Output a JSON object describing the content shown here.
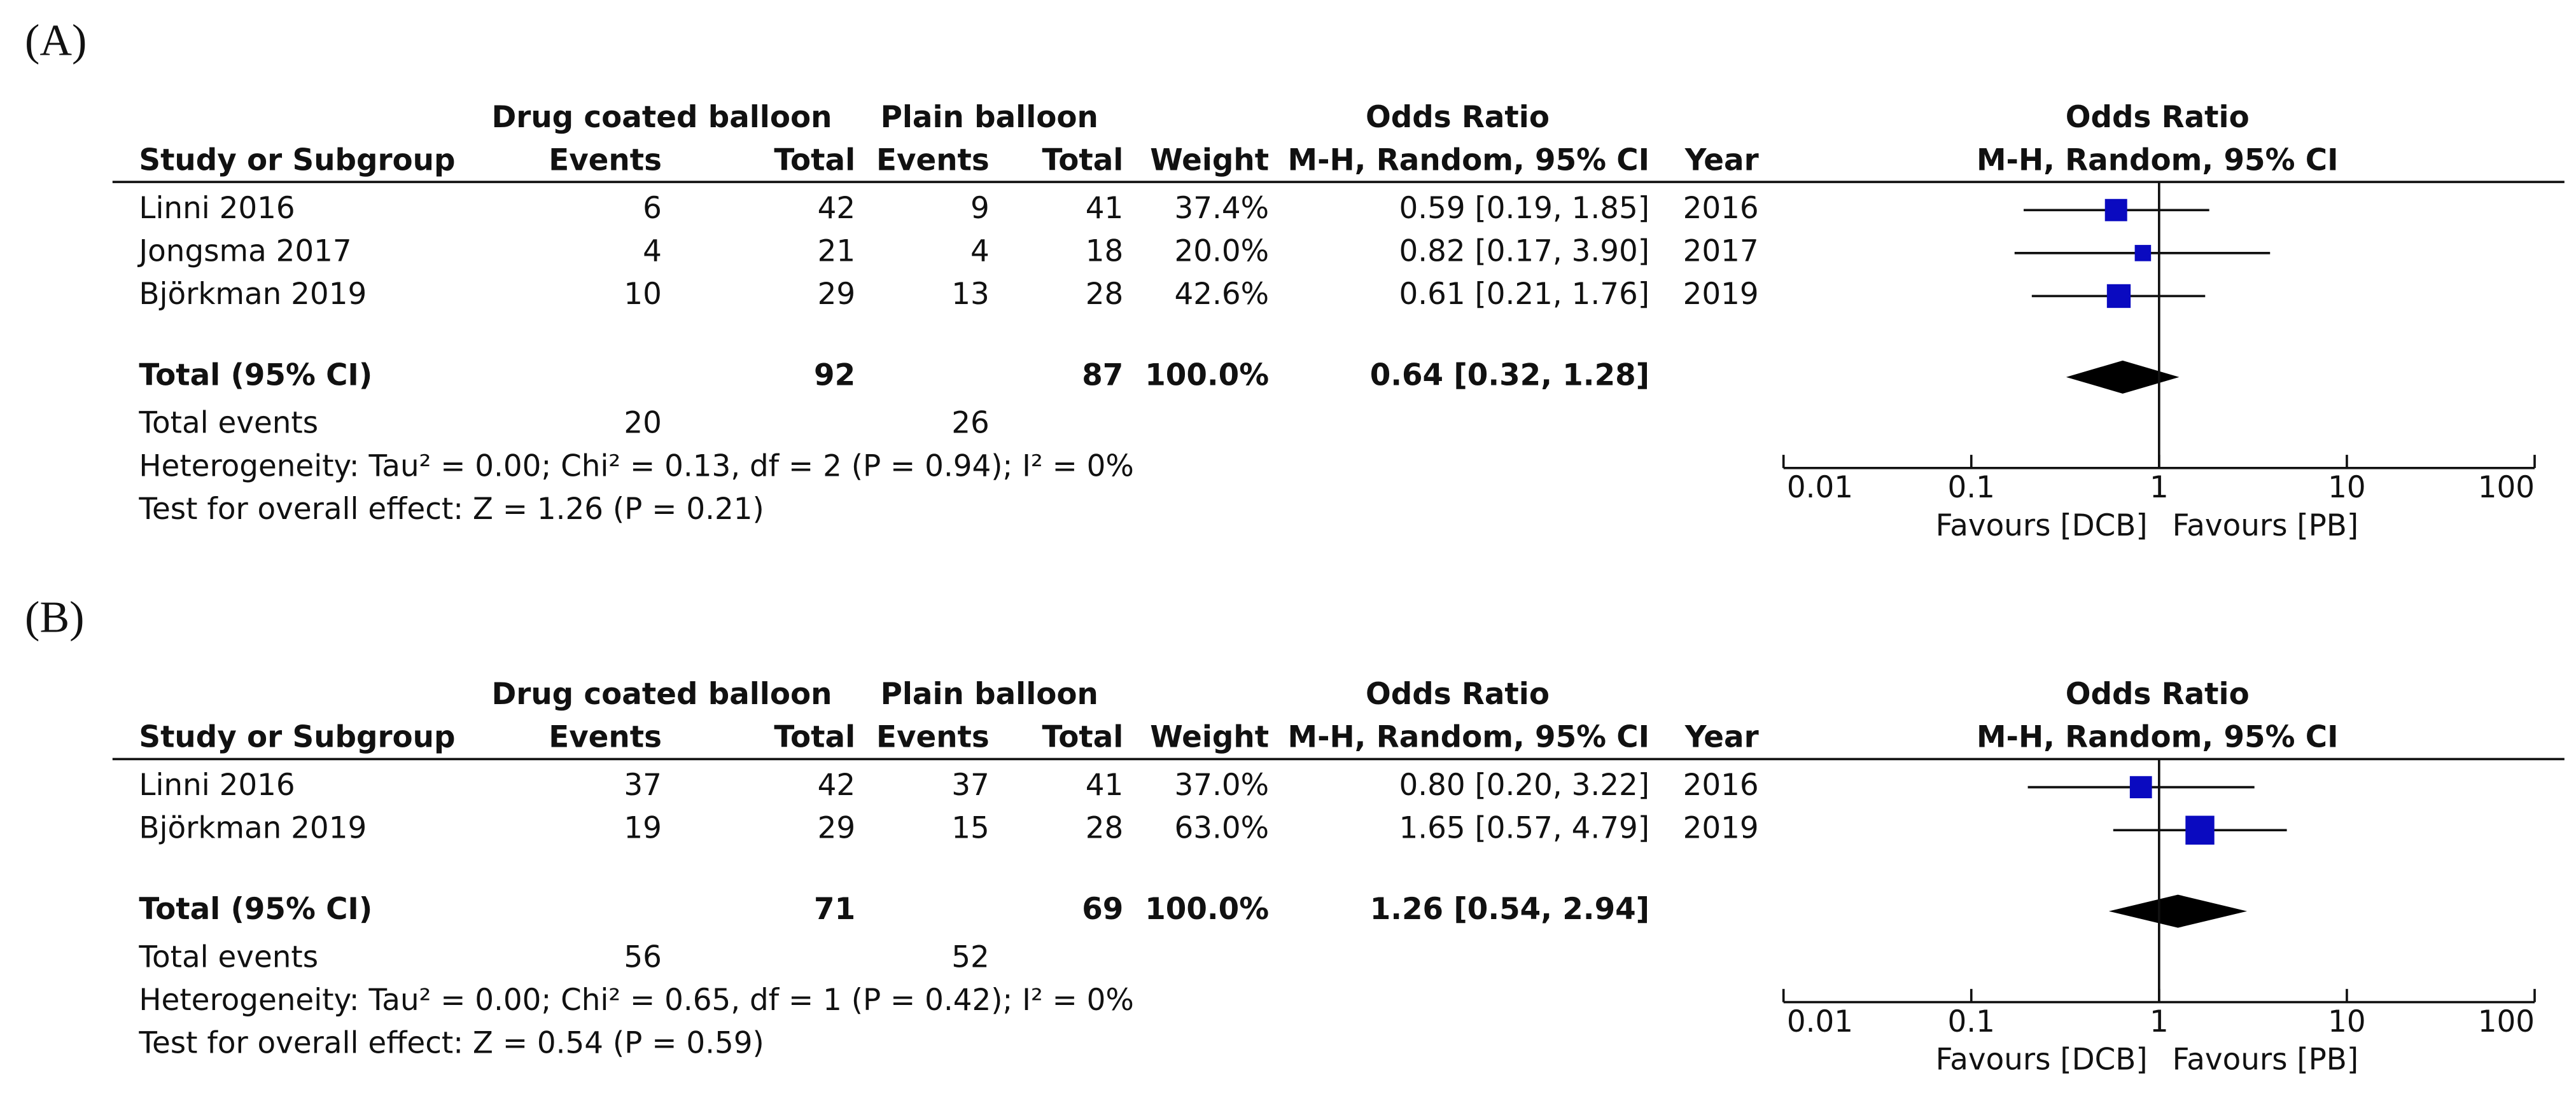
{
  "chart_data": [
    {
      "type": "forest",
      "panel": "(A)",
      "group_headers": [
        "Drug coated balloon",
        "Plain balloon",
        "Odds Ratio",
        "Odds Ratio"
      ],
      "column_headers": [
        "Study or Subgroup",
        "Events",
        "Total",
        "Events",
        "Total",
        "Weight",
        "M-H, Random, 95% CI",
        "Year",
        "M-H, Random, 95% CI"
      ],
      "studies": [
        {
          "name": "Linni 2016",
          "e1": 6,
          "n1": 42,
          "e2": 9,
          "n2": 41,
          "weight": 37.4,
          "weight_label": "37.4%",
          "or": 0.59,
          "lower": 0.19,
          "upper": 1.85,
          "ci_label": "0.59 [0.19, 1.85]",
          "year": 2016
        },
        {
          "name": "Jongsma 2017",
          "e1": 4,
          "n1": 21,
          "e2": 4,
          "n2": 18,
          "weight": 20.0,
          "weight_label": "20.0%",
          "or": 0.82,
          "lower": 0.17,
          "upper": 3.9,
          "ci_label": "0.82 [0.17, 3.90]",
          "year": 2017
        },
        {
          "name": "Björkman 2019",
          "e1": 10,
          "n1": 29,
          "e2": 13,
          "n2": 28,
          "weight": 42.6,
          "weight_label": "42.6%",
          "or": 0.61,
          "lower": 0.21,
          "upper": 1.76,
          "ci_label": "0.61 [0.21, 1.76]",
          "year": 2019
        }
      ],
      "total": {
        "name": "Total (95% CI)",
        "n1": 92,
        "n2": 87,
        "weight": 100.0,
        "weight_label": "100.0%",
        "or": 0.64,
        "lower": 0.32,
        "upper": 1.28,
        "ci_label": "0.64 [0.32, 1.28]"
      },
      "total_events": {
        "label": "Total events",
        "e1": 20,
        "e2": 26
      },
      "heterogeneity": "Heterogeneity: Tau² = 0.00; Chi² = 0.13, df = 2 (P = 0.94); I² = 0%",
      "overall_effect": "Test for overall effect: Z = 1.26 (P = 0.21)",
      "xlim": [
        0.01,
        100
      ],
      "xticks": [
        0.01,
        0.1,
        1,
        10,
        100
      ],
      "log": true,
      "favours_left": "Favours [DCB]",
      "favours_right": "Favours [PB]",
      "color": "#0a0ac0",
      "diamond_color": "#000000"
    },
    {
      "type": "forest",
      "panel": "(B)",
      "group_headers": [
        "Drug coated balloon",
        "Plain balloon",
        "Odds Ratio",
        "Odds Ratio"
      ],
      "column_headers": [
        "Study or Subgroup",
        "Events",
        "Total",
        "Events",
        "Total",
        "Weight",
        "M-H, Random, 95% CI",
        "Year",
        "M-H, Random, 95% CI"
      ],
      "studies": [
        {
          "name": "Linni 2016",
          "e1": 37,
          "n1": 42,
          "e2": 37,
          "n2": 41,
          "weight": 37.0,
          "weight_label": "37.0%",
          "or": 0.8,
          "lower": 0.2,
          "upper": 3.22,
          "ci_label": "0.80 [0.20, 3.22]",
          "year": 2016
        },
        {
          "name": "Björkman 2019",
          "e1": 19,
          "n1": 29,
          "e2": 15,
          "n2": 28,
          "weight": 63.0,
          "weight_label": "63.0%",
          "or": 1.65,
          "lower": 0.57,
          "upper": 4.79,
          "ci_label": "1.65 [0.57, 4.79]",
          "year": 2019
        }
      ],
      "total": {
        "name": "Total (95% CI)",
        "n1": 71,
        "n2": 69,
        "weight": 100.0,
        "weight_label": "100.0%",
        "or": 1.26,
        "lower": 0.54,
        "upper": 2.94,
        "ci_label": "1.26 [0.54, 2.94]"
      },
      "total_events": {
        "label": "Total events",
        "e1": 56,
        "e2": 52
      },
      "heterogeneity": "Heterogeneity: Tau² = 0.00; Chi² = 0.65, df = 1 (P = 0.42); I² = 0%",
      "overall_effect": "Test for overall effect: Z = 0.54 (P = 0.59)",
      "xlim": [
        0.01,
        100
      ],
      "xticks": [
        0.01,
        0.1,
        1,
        10,
        100
      ],
      "log": true,
      "favours_left": "Favours [DCB]",
      "favours_right": "Favours [PB]",
      "color": "#0a0ac0",
      "diamond_color": "#000000"
    }
  ]
}
